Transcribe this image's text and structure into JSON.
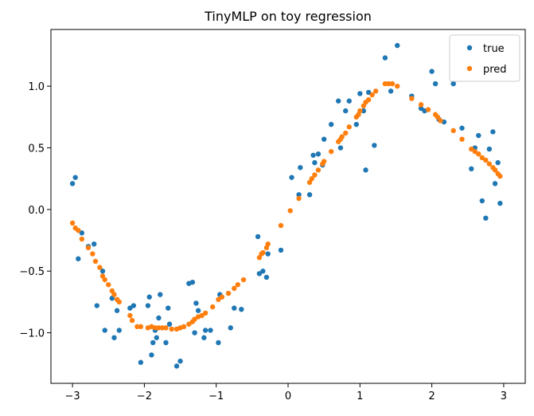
{
  "chart_data": {
    "type": "scatter",
    "title": "TinyMLP on toy regression",
    "xlabel": "",
    "ylabel": "",
    "xlim": [
      -3.3,
      3.3
    ],
    "ylim": [
      -1.41,
      1.46
    ],
    "x_ticks": [
      -3,
      -2,
      -1,
      0,
      1,
      2,
      3
    ],
    "x_tick_labels": [
      "−3",
      "−2",
      "−1",
      "0",
      "1",
      "2",
      "3"
    ],
    "y_ticks": [
      -1.0,
      -0.5,
      0.0,
      0.5,
      1.0
    ],
    "y_tick_labels": [
      "−1.0",
      "−0.5",
      "0.0",
      "0.5",
      "1.0"
    ],
    "grid": false,
    "legend_position": "top-right",
    "series": [
      {
        "name": "true",
        "color": "#1f77b4",
        "points": [
          [
            -3.0,
            0.21
          ],
          [
            -2.96,
            0.26
          ],
          [
            -2.92,
            -0.4
          ],
          [
            -2.87,
            -0.19
          ],
          [
            -2.78,
            -0.3
          ],
          [
            -2.7,
            -0.28
          ],
          [
            -2.66,
            -0.78
          ],
          [
            -2.58,
            -0.5
          ],
          [
            -2.55,
            -0.98
          ],
          [
            -2.45,
            -0.72
          ],
          [
            -2.42,
            -1.04
          ],
          [
            -2.38,
            -0.82
          ],
          [
            -2.35,
            -0.98
          ],
          [
            -2.2,
            -0.8
          ],
          [
            -2.15,
            -0.78
          ],
          [
            -2.05,
            -1.24
          ],
          [
            -1.95,
            -0.78
          ],
          [
            -1.93,
            -0.71
          ],
          [
            -1.9,
            -1.18
          ],
          [
            -1.88,
            -1.08
          ],
          [
            -1.85,
            -0.98
          ],
          [
            -1.83,
            -1.04
          ],
          [
            -1.8,
            -0.88
          ],
          [
            -1.78,
            -0.69
          ],
          [
            -1.7,
            -1.08
          ],
          [
            -1.67,
            -0.8
          ],
          [
            -1.65,
            -0.93
          ],
          [
            -1.55,
            -1.27
          ],
          [
            -1.5,
            -1.23
          ],
          [
            -1.38,
            -0.6
          ],
          [
            -1.33,
            -0.59
          ],
          [
            -1.3,
            -1.0
          ],
          [
            -1.28,
            -0.76
          ],
          [
            -1.25,
            -0.82
          ],
          [
            -1.17,
            -1.04
          ],
          [
            -1.15,
            -0.98
          ],
          [
            -1.08,
            -0.98
          ],
          [
            -0.97,
            -1.08
          ],
          [
            -0.95,
            -0.69
          ],
          [
            -0.8,
            -0.96
          ],
          [
            -0.75,
            -0.8
          ],
          [
            -0.65,
            -0.81
          ],
          [
            -0.42,
            -0.22
          ],
          [
            -0.4,
            -0.52
          ],
          [
            -0.35,
            -0.5
          ],
          [
            -0.3,
            -0.55
          ],
          [
            -0.28,
            -0.36
          ],
          [
            -0.1,
            -0.33
          ],
          [
            0.05,
            0.26
          ],
          [
            0.15,
            0.12
          ],
          [
            0.17,
            0.34
          ],
          [
            0.3,
            0.12
          ],
          [
            0.35,
            0.44
          ],
          [
            0.37,
            0.38
          ],
          [
            0.42,
            0.45
          ],
          [
            0.48,
            0.36
          ],
          [
            0.5,
            0.57
          ],
          [
            0.6,
            0.69
          ],
          [
            0.7,
            0.88
          ],
          [
            0.73,
            0.5
          ],
          [
            0.8,
            0.8
          ],
          [
            0.85,
            0.88
          ],
          [
            0.95,
            0.69
          ],
          [
            1.0,
            0.94
          ],
          [
            1.05,
            0.8
          ],
          [
            1.08,
            0.32
          ],
          [
            1.12,
            0.95
          ],
          [
            1.2,
            0.52
          ],
          [
            1.35,
            1.23
          ],
          [
            1.43,
            0.96
          ],
          [
            1.52,
            1.33
          ],
          [
            1.72,
            0.92
          ],
          [
            1.85,
            0.82
          ],
          [
            1.9,
            0.8
          ],
          [
            2.0,
            1.12
          ],
          [
            2.05,
            1.02
          ],
          [
            2.1,
            0.73
          ],
          [
            2.17,
            0.71
          ],
          [
            2.3,
            1.02
          ],
          [
            2.42,
            0.66
          ],
          [
            2.55,
            0.33
          ],
          [
            2.6,
            0.5
          ],
          [
            2.65,
            0.6
          ],
          [
            2.7,
            0.07
          ],
          [
            2.75,
            -0.07
          ],
          [
            2.8,
            0.49
          ],
          [
            2.85,
            0.63
          ],
          [
            2.88,
            0.21
          ],
          [
            2.92,
            0.38
          ],
          [
            2.95,
            0.05
          ]
        ]
      },
      {
        "name": "pred",
        "color": "#ff7f0e",
        "points": [
          [
            -3.0,
            -0.11
          ],
          [
            -2.96,
            -0.15
          ],
          [
            -2.92,
            -0.17
          ],
          [
            -2.87,
            -0.24
          ],
          [
            -2.78,
            -0.31
          ],
          [
            -2.72,
            -0.36
          ],
          [
            -2.68,
            -0.42
          ],
          [
            -2.62,
            -0.47
          ],
          [
            -2.58,
            -0.54
          ],
          [
            -2.55,
            -0.57
          ],
          [
            -2.5,
            -0.61
          ],
          [
            -2.45,
            -0.66
          ],
          [
            -2.42,
            -0.69
          ],
          [
            -2.38,
            -0.73
          ],
          [
            -2.35,
            -0.75
          ],
          [
            -2.2,
            -0.86
          ],
          [
            -2.17,
            -0.9
          ],
          [
            -2.1,
            -0.95
          ],
          [
            -2.05,
            -0.95
          ],
          [
            -1.95,
            -0.96
          ],
          [
            -1.9,
            -0.95
          ],
          [
            -1.85,
            -0.96
          ],
          [
            -1.8,
            -0.96
          ],
          [
            -1.75,
            -0.96
          ],
          [
            -1.7,
            -0.96
          ],
          [
            -1.62,
            -0.97
          ],
          [
            -1.55,
            -0.97
          ],
          [
            -1.5,
            -0.96
          ],
          [
            -1.45,
            -0.95
          ],
          [
            -1.38,
            -0.93
          ],
          [
            -1.33,
            -0.91
          ],
          [
            -1.3,
            -0.89
          ],
          [
            -1.25,
            -0.87
          ],
          [
            -1.2,
            -0.86
          ],
          [
            -1.15,
            -0.84
          ],
          [
            -1.05,
            -0.79
          ],
          [
            -0.97,
            -0.73
          ],
          [
            -0.92,
            -0.71
          ],
          [
            -0.83,
            -0.68
          ],
          [
            -0.75,
            -0.64
          ],
          [
            -0.7,
            -0.61
          ],
          [
            -0.62,
            -0.57
          ],
          [
            -0.4,
            -0.39
          ],
          [
            -0.37,
            -0.36
          ],
          [
            -0.35,
            -0.35
          ],
          [
            -0.3,
            -0.31
          ],
          [
            -0.28,
            -0.28
          ],
          [
            -0.1,
            -0.13
          ],
          [
            0.03,
            -0.01
          ],
          [
            0.15,
            0.09
          ],
          [
            0.3,
            0.22
          ],
          [
            0.33,
            0.25
          ],
          [
            0.37,
            0.28
          ],
          [
            0.42,
            0.32
          ],
          [
            0.48,
            0.37
          ],
          [
            0.5,
            0.39
          ],
          [
            0.6,
            0.47
          ],
          [
            0.7,
            0.55
          ],
          [
            0.73,
            0.57
          ],
          [
            0.75,
            0.59
          ],
          [
            0.8,
            0.62
          ],
          [
            0.85,
            0.67
          ],
          [
            0.95,
            0.75
          ],
          [
            0.98,
            0.77
          ],
          [
            1.0,
            0.8
          ],
          [
            1.05,
            0.84
          ],
          [
            1.08,
            0.87
          ],
          [
            1.12,
            0.89
          ],
          [
            1.17,
            0.93
          ],
          [
            1.22,
            0.96
          ],
          [
            1.35,
            1.02
          ],
          [
            1.4,
            1.02
          ],
          [
            1.45,
            1.02
          ],
          [
            1.52,
            1.0
          ],
          [
            1.72,
            0.9
          ],
          [
            1.85,
            0.85
          ],
          [
            1.95,
            0.81
          ],
          [
            2.05,
            0.77
          ],
          [
            2.08,
            0.75
          ],
          [
            2.12,
            0.72
          ],
          [
            2.3,
            0.64
          ],
          [
            2.42,
            0.57
          ],
          [
            2.55,
            0.49
          ],
          [
            2.6,
            0.47
          ],
          [
            2.65,
            0.45
          ],
          [
            2.7,
            0.42
          ],
          [
            2.75,
            0.4
          ],
          [
            2.8,
            0.37
          ],
          [
            2.85,
            0.34
          ],
          [
            2.88,
            0.32
          ],
          [
            2.92,
            0.29
          ],
          [
            2.95,
            0.27
          ]
        ]
      }
    ]
  }
}
